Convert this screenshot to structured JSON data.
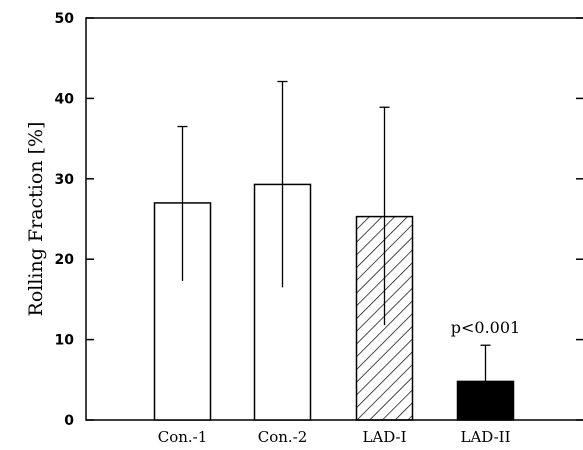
{
  "chart_data": {
    "type": "bar",
    "title": "",
    "xlabel": "",
    "ylabel": "Rolling Fraction [%]",
    "ylim": [
      0,
      50
    ],
    "yticks": [
      0,
      10,
      20,
      30,
      40,
      50
    ],
    "categories": [
      "Con.-1",
      "Con.-2",
      "LAD-I",
      "LAD-II"
    ],
    "values": [
      27,
      29.3,
      25.3,
      4.8
    ],
    "error_upper": [
      36.5,
      42.1,
      38.9,
      9.3
    ],
    "error_lower": [
      17.3,
      16.5,
      11.8,
      4.8
    ],
    "fills": [
      "white",
      "white",
      "hatched",
      "black"
    ],
    "annotations": [
      {
        "category": "LAD-II",
        "text": "p<0.001"
      }
    ],
    "grid": false
  }
}
